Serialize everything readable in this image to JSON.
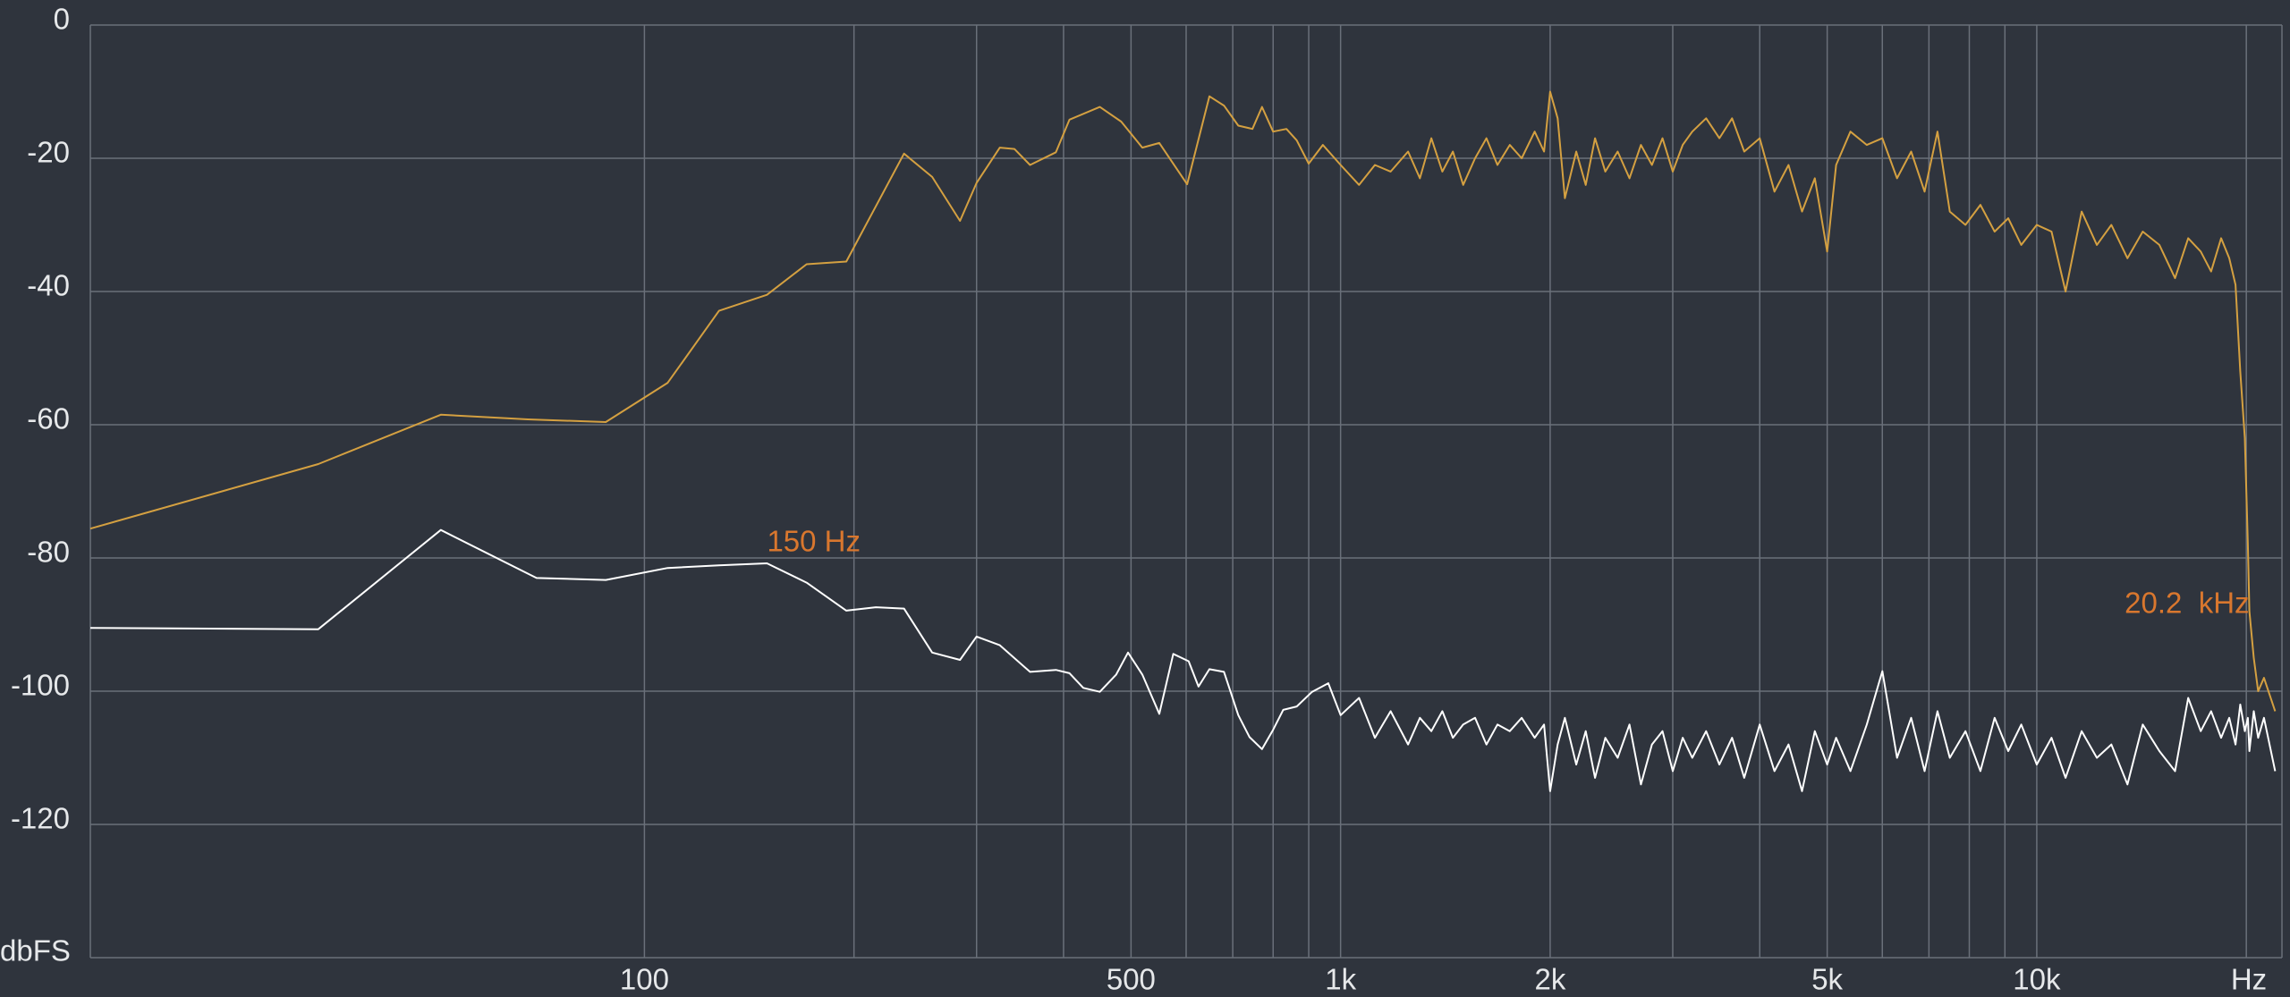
{
  "chart_data": {
    "type": "line",
    "x_label": "Hz",
    "y_label": "dbFS",
    "log_x": true,
    "grid": true,
    "xlim": [
      16,
      22500
    ],
    "ylim": [
      -140,
      0
    ],
    "yticks": [
      0,
      -20,
      -40,
      -60,
      -80,
      -100,
      -120
    ],
    "xticks": [
      100,
      500,
      {
        "value": 1000,
        "label": "1k"
      },
      {
        "value": 2000,
        "label": "2k"
      },
      {
        "value": 5000,
        "label": "5k"
      },
      {
        "value": 10000,
        "label": "10k"
      }
    ],
    "xgrid": [
      100,
      200,
      300,
      400,
      500,
      600,
      700,
      800,
      900,
      1000,
      2000,
      3000,
      4000,
      5000,
      6000,
      7000,
      8000,
      9000,
      10000,
      20000
    ],
    "annotations": [
      {
        "text": "150 Hz",
        "x": 150,
        "color": "#d9772e",
        "anchor": "start"
      },
      {
        "text": "20.2  kHz",
        "x": 20200,
        "color": "#d9772e",
        "anchor": "end"
      }
    ],
    "series": [
      {
        "color": "#d4a041",
        "x": [
          16,
          34,
          51,
          68,
          88,
          108,
          128,
          150,
          171,
          195,
          236,
          259,
          284,
          300,
          324,
          340,
          358,
          390,
          408,
          451,
          484,
          519,
          549,
          602,
          648,
          680,
          713,
          747,
          771,
          800,
          836,
          865,
          900,
          943,
          1000,
          1063,
          1120,
          1180,
          1250,
          1300,
          1350,
          1400,
          1450,
          1500,
          1560,
          1620,
          1680,
          1750,
          1820,
          1900,
          1960,
          2000,
          2050,
          2100,
          2180,
          2250,
          2320,
          2400,
          2500,
          2600,
          2700,
          2800,
          2900,
          3000,
          3100,
          3200,
          3350,
          3500,
          3650,
          3800,
          4000,
          4200,
          4400,
          4600,
          4800,
          5000,
          5150,
          5400,
          5700,
          6000,
          6300,
          6600,
          6900,
          7200,
          7500,
          7900,
          8300,
          8700,
          9100,
          9500,
          10000,
          10500,
          11000,
          11600,
          12200,
          12800,
          13500,
          14200,
          15000,
          15800,
          16500,
          17200,
          17800,
          18400,
          18900,
          19300,
          19600,
          19900,
          20100,
          20200,
          20500,
          20800,
          21200,
          22000
        ],
        "values": [
          -75.6,
          -65.9,
          -58.5,
          -59.2,
          -59.6,
          -53.7,
          -42.9,
          -40.5,
          -35.9,
          -35.5,
          -19.3,
          -22.8,
          -29.4,
          -23.7,
          -18.4,
          -18.6,
          -21,
          -19.1,
          -14.2,
          -12.3,
          -14.5,
          -18.4,
          -17.7,
          -23.9,
          -10.7,
          -12.1,
          -15.1,
          -15.6,
          -12.3,
          -16,
          -15.6,
          -17.3,
          -20.8,
          -18,
          -21,
          -24,
          -21,
          -22,
          -19,
          -23,
          -17,
          -22,
          -19,
          -24,
          -20,
          -17,
          -21,
          -18,
          -20,
          -16,
          -19,
          -10,
          -14,
          -26,
          -19,
          -24,
          -17,
          -22,
          -19,
          -23,
          -18,
          -21,
          -17,
          -22,
          -18,
          -16,
          -14,
          -17,
          -14,
          -19,
          -17,
          -25,
          -21,
          -28,
          -23,
          -34,
          -21,
          -16,
          -18,
          -17,
          -23,
          -19,
          -25,
          -16,
          -28,
          -30,
          -27,
          -31,
          -29,
          -33,
          -30,
          -31,
          -40,
          -28,
          -33,
          -30,
          -35,
          -31,
          -33,
          -38,
          -32,
          -34,
          -37,
          -32,
          -35,
          -39,
          -52,
          -62,
          -78,
          -88,
          -95,
          -100,
          -98,
          -103
        ]
      },
      {
        "color": "#ffffff",
        "x": [
          16,
          34,
          51,
          70,
          88,
          108,
          128,
          150,
          171,
          195,
          215,
          236,
          259,
          284,
          300,
          324,
          358,
          390,
          408,
          427,
          451,
          476,
          495,
          519,
          549,
          575,
          605,
          625,
          648,
          680,
          713,
          740,
          771,
          800,
          827,
          865,
          910,
          960,
          1000,
          1063,
          1120,
          1180,
          1250,
          1300,
          1350,
          1400,
          1450,
          1500,
          1560,
          1620,
          1680,
          1750,
          1820,
          1900,
          1960,
          2000,
          2050,
          2100,
          2180,
          2250,
          2320,
          2400,
          2500,
          2600,
          2700,
          2800,
          2900,
          3000,
          3100,
          3200,
          3350,
          3500,
          3650,
          3800,
          4000,
          4200,
          4400,
          4600,
          4800,
          5000,
          5150,
          5400,
          5700,
          6000,
          6300,
          6600,
          6900,
          7200,
          7500,
          7900,
          8300,
          8700,
          9100,
          9500,
          10000,
          10500,
          11000,
          11600,
          12200,
          12800,
          13500,
          14200,
          15000,
          15800,
          16500,
          17200,
          17800,
          18400,
          18900,
          19300,
          19600,
          19900,
          20100,
          20200,
          20500,
          20800,
          21200,
          22000
        ],
        "values": [
          -90.5,
          -90.7,
          -75.8,
          -83,
          -83.3,
          -81.5,
          -81.1,
          -80.8,
          -83.7,
          -87.9,
          -87.4,
          -87.6,
          -94.2,
          -95.3,
          -91.8,
          -93.1,
          -97.1,
          -96.8,
          -97.3,
          -99.5,
          -100.1,
          -97.5,
          -94.2,
          -97.5,
          -103.4,
          -94.4,
          -95.5,
          -99.3,
          -96.7,
          -97.1,
          -103.6,
          -106.9,
          -108.7,
          -105.8,
          -102.8,
          -102.3,
          -100.1,
          -98.8,
          -103.6,
          -101,
          -107,
          -103,
          -108,
          -104,
          -106,
          -103,
          -107,
          -105,
          -104,
          -108,
          -105,
          -106,
          -104,
          -107,
          -105,
          -115,
          -108,
          -104,
          -111,
          -106,
          -113,
          -107,
          -110,
          -105,
          -114,
          -108,
          -106,
          -112,
          -107,
          -110,
          -106,
          -111,
          -107,
          -113,
          -105,
          -112,
          -108,
          -115,
          -106,
          -111,
          -107,
          -112,
          -105,
          -97,
          -110,
          -104,
          -112,
          -103,
          -110,
          -106,
          -112,
          -104,
          -109,
          -105,
          -111,
          -107,
          -113,
          -106,
          -110,
          -108,
          -114,
          -105,
          -109,
          -112,
          -101,
          -106,
          -103,
          -107,
          -104,
          -108,
          -102,
          -106,
          -104,
          -109,
          -103,
          -107,
          -104,
          -112
        ]
      }
    ]
  }
}
